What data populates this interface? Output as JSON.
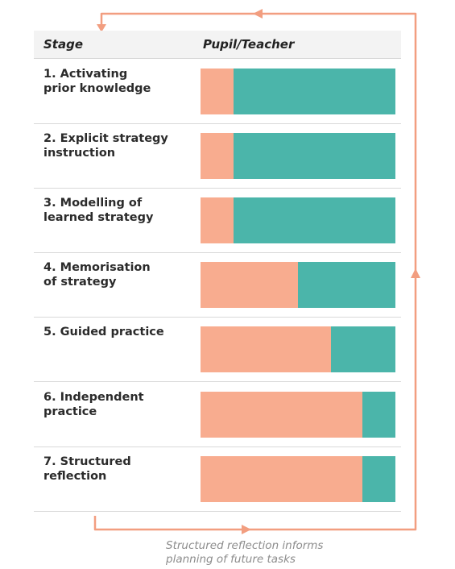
{
  "header": {
    "stage": "Stage",
    "pupil_teacher": "Pupil/Teacher"
  },
  "legend_colors": {
    "pupil": "#f8ac8f",
    "teacher": "#4bb5aa",
    "arrow": "#f29e80"
  },
  "stages": [
    {
      "label": "1. Activating\nprior knowledge",
      "pupil_share": 0.17
    },
    {
      "label": "2. Explicit strategy\ninstruction",
      "pupil_share": 0.17
    },
    {
      "label": "3. Modelling of\nlearned strategy",
      "pupil_share": 0.17
    },
    {
      "label": "4. Memorisation\nof strategy",
      "pupil_share": 0.5
    },
    {
      "label": "5. Guided practice",
      "pupil_share": 0.67
    },
    {
      "label": "6. Independent\npractice",
      "pupil_share": 0.83
    },
    {
      "label": "7. Structured\nreflection",
      "pupil_share": 0.83
    }
  ],
  "caption": "Structured reflection informs\nplanning of future tasks"
}
